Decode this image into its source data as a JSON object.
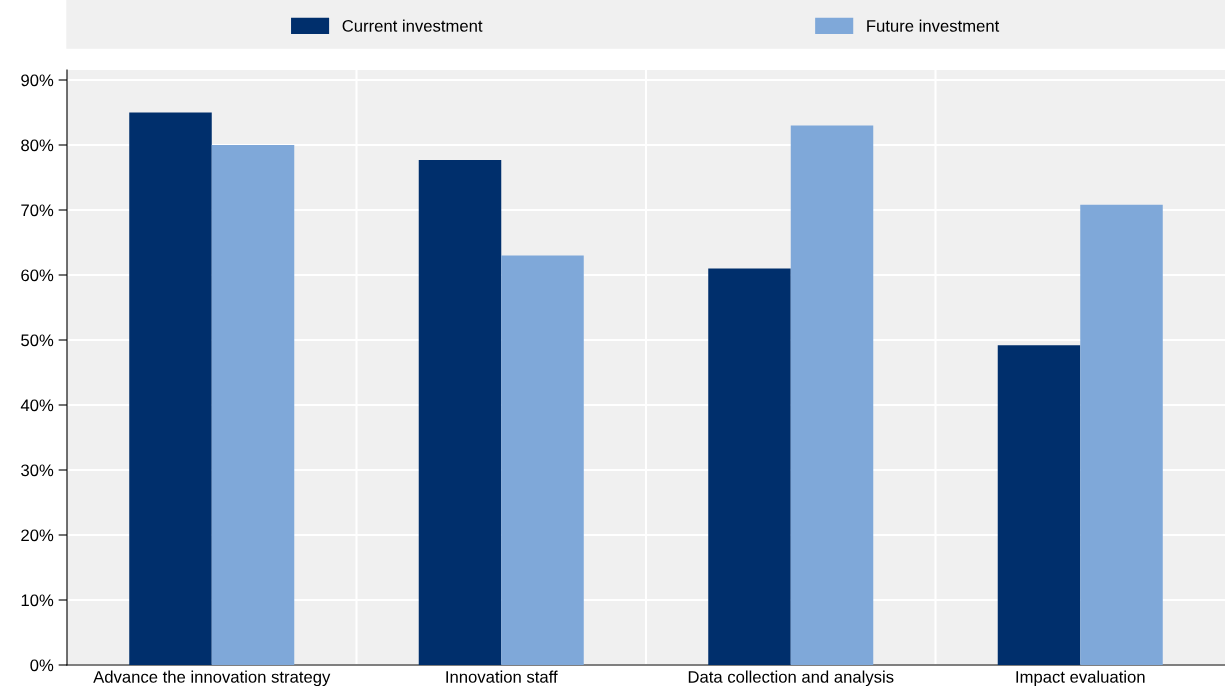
{
  "chart_data": {
    "type": "bar",
    "categories": [
      "Advance the innovation strategy",
      "Innovation staff",
      "Data collection and analysis",
      "Impact evaluation"
    ],
    "series": [
      {
        "name": "Current investment",
        "color": "#002f6c",
        "values": [
          85,
          77.7,
          61,
          49.2
        ]
      },
      {
        "name": "Future investment",
        "color": "#7fa8d9",
        "values": [
          80,
          63,
          83,
          70.8
        ]
      }
    ],
    "ylim": [
      0,
      90
    ],
    "yticks": [
      {
        "value": 0,
        "label": "0%"
      },
      {
        "value": 10,
        "label": "10%"
      },
      {
        "value": 20,
        "label": "20%"
      },
      {
        "value": 30,
        "label": "30%"
      },
      {
        "value": 40,
        "label": "40%"
      },
      {
        "value": 50,
        "label": "50%"
      },
      {
        "value": 60,
        "label": "60%"
      },
      {
        "value": 70,
        "label": "70%"
      },
      {
        "value": 80,
        "label": "80%"
      },
      {
        "value": 90,
        "label": "90%"
      }
    ],
    "grid": true,
    "legend": "top"
  }
}
